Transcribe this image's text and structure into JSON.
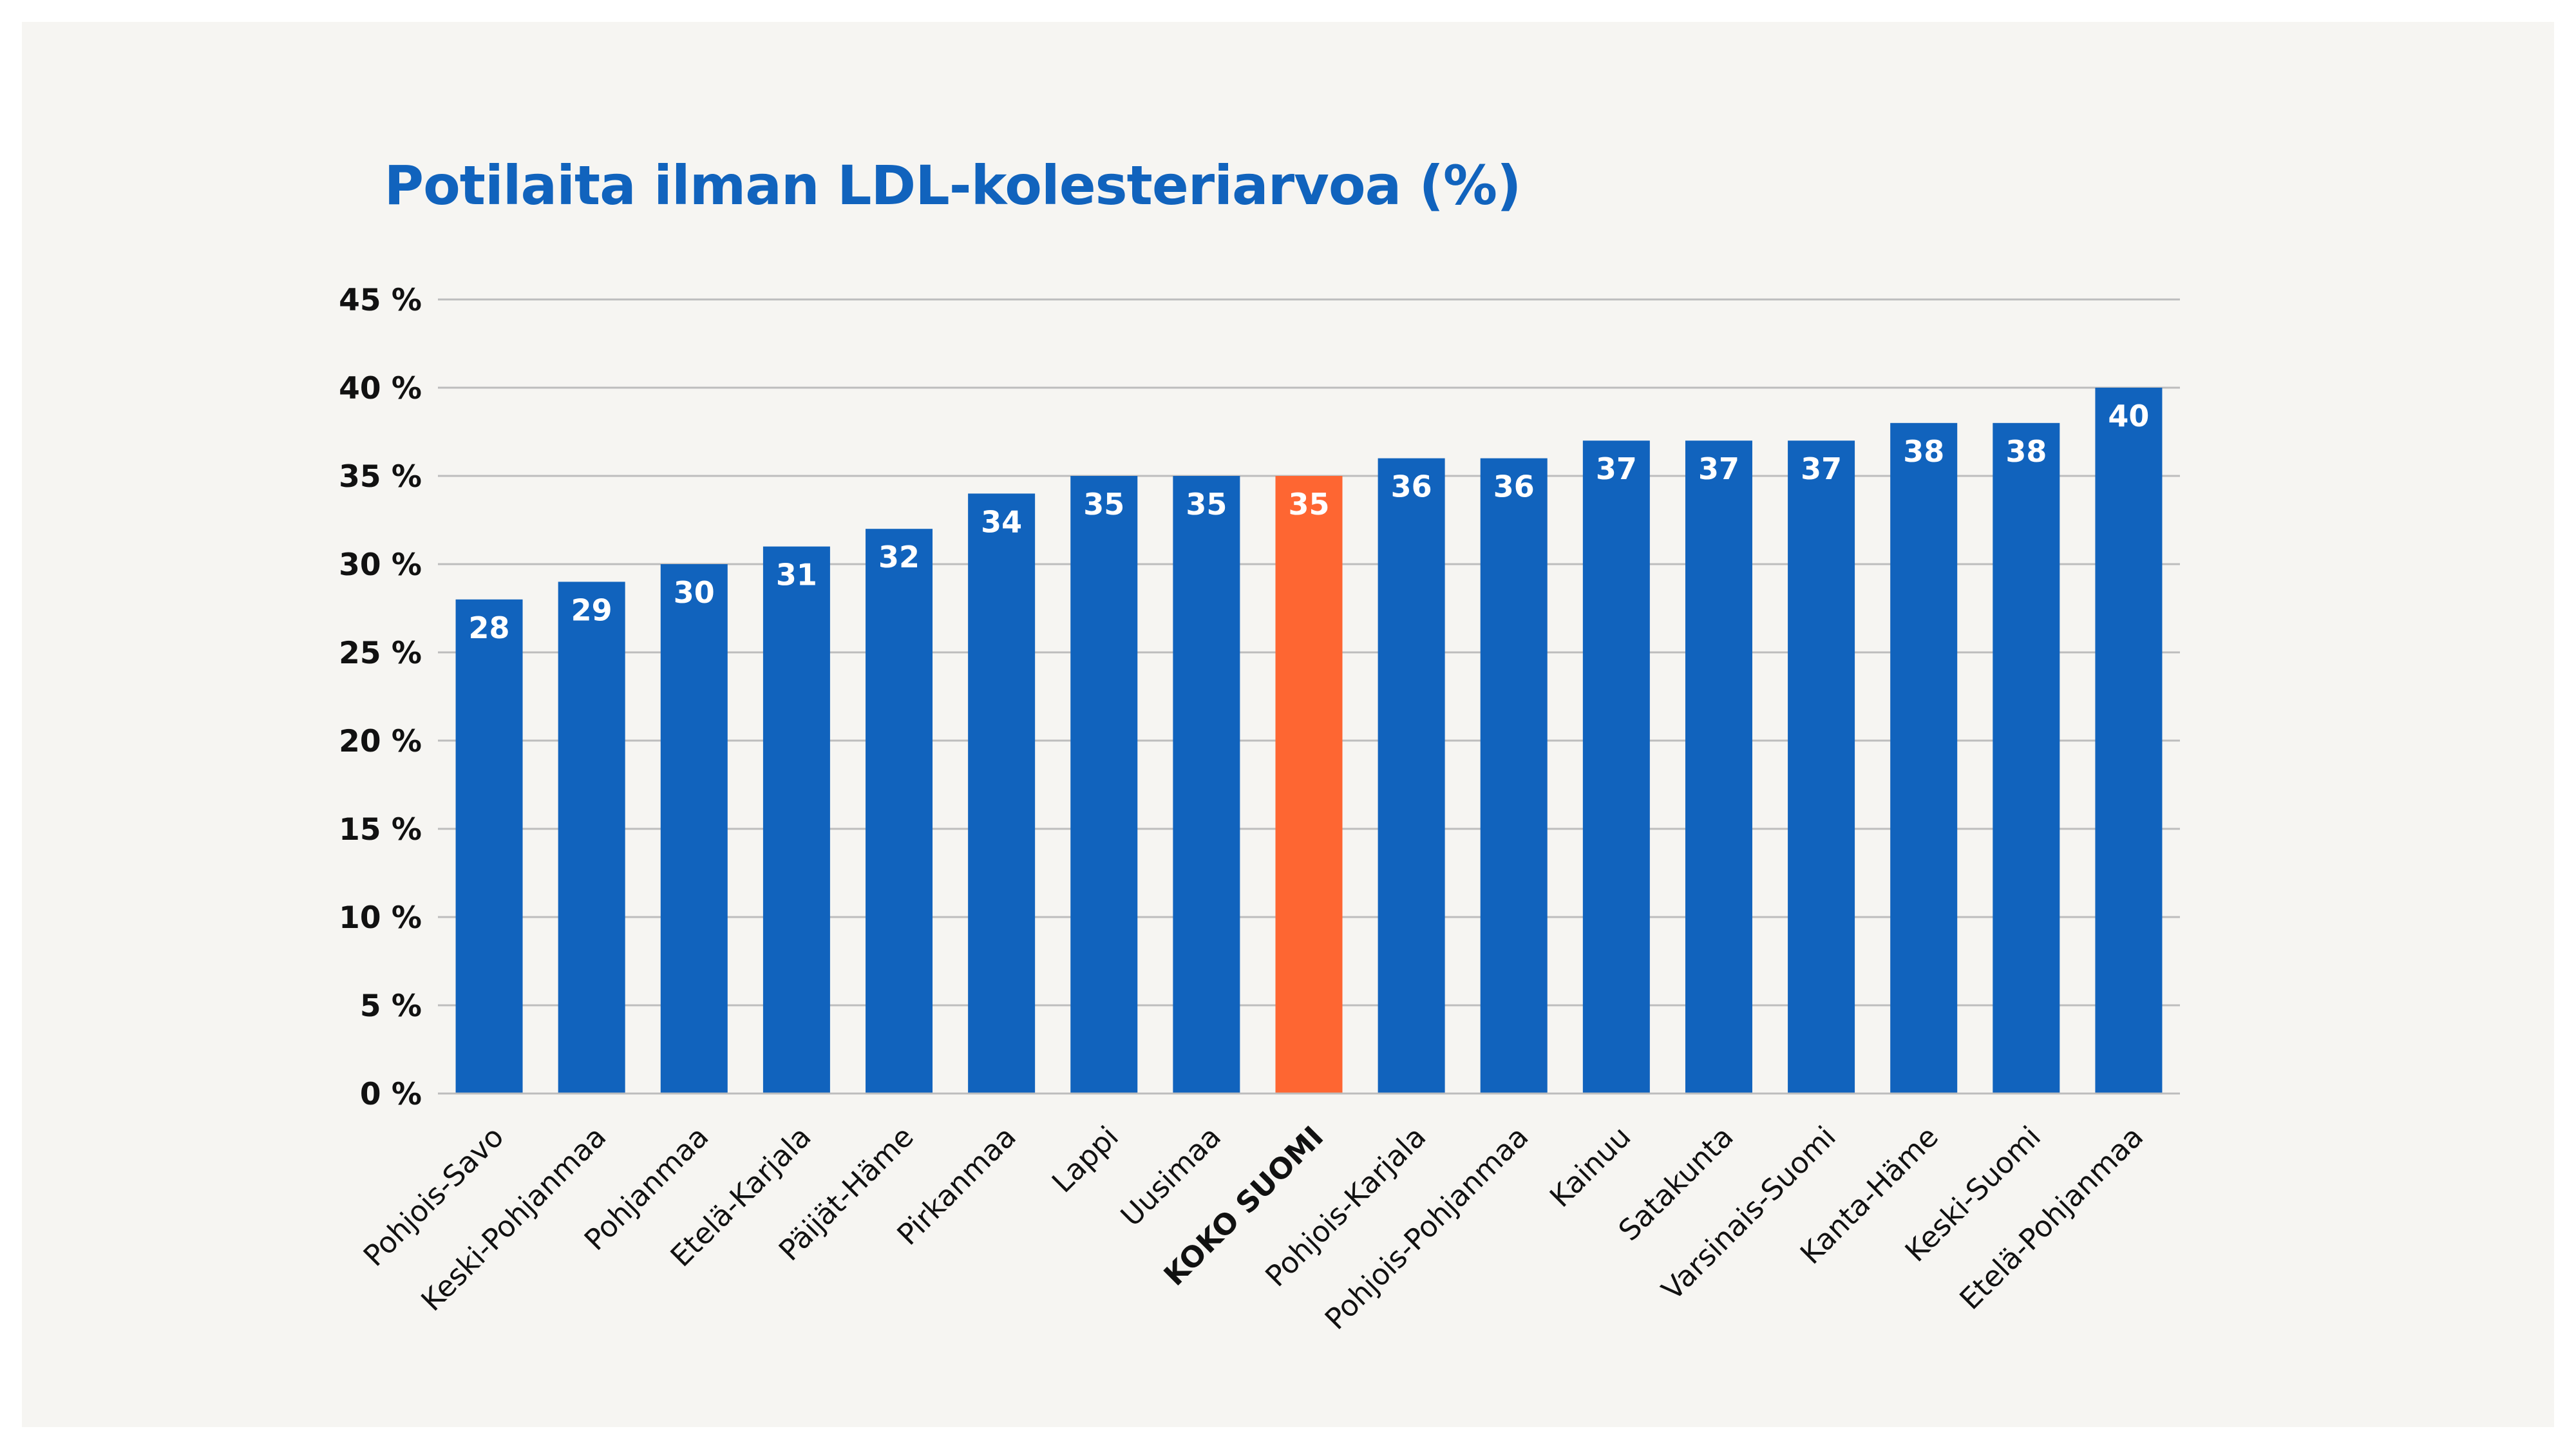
{
  "chart_data": {
    "type": "bar",
    "title": "Potilaita ilman LDL-kolesteriarvoa (%)",
    "xlabel": "",
    "ylabel": "",
    "ylim": [
      0,
      45
    ],
    "yticks": [
      0,
      5,
      10,
      15,
      20,
      25,
      30,
      35,
      40,
      45
    ],
    "ytick_labels": [
      "0 %",
      "5 %",
      "10 %",
      "15 %",
      "20 %",
      "25 %",
      "30 %",
      "35 %",
      "40 %",
      "45 %"
    ],
    "grid": true,
    "legend": "none",
    "categories": [
      "Pohjois-Savo",
      "Keski-Pohjanmaa",
      "Pohjanmaa",
      "Etelä-Karjala",
      "Päijät-Häme",
      "Pirkanmaa",
      "Lappi",
      "Uusimaa",
      "KOKO SUOMI",
      "Pohjois-Karjala",
      "Pohjois-Pohjanmaa",
      "Kainuu",
      "Satakunta",
      "Varsinais-Suomi",
      "Kanta-Häme",
      "Keski-Suomi",
      "Etelä-Pohjanmaa"
    ],
    "values": [
      28,
      29,
      30,
      31,
      32,
      34,
      35,
      35,
      35,
      36,
      36,
      37,
      37,
      37,
      38,
      38,
      40
    ],
    "highlight_category": "KOKO SUOMI",
    "colors": {
      "bar": "#1163bd",
      "highlight": "#fe6632",
      "title": "#1163bd",
      "grid": "#bdbdbd",
      "axis_text": "#111111",
      "value_label": "#ffffff"
    }
  }
}
